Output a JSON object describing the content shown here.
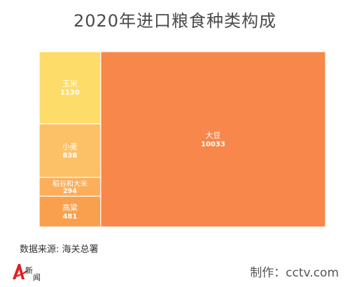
{
  "title": "2020年进口粮食种类构成",
  "source": "数据来源: 海关总署",
  "credit": "制作：cctv.com",
  "logo": {
    "text": "新闻",
    "prefix": "A"
  },
  "colors": {
    "soybean": "#f7874a",
    "corn": "#fddc6a",
    "wheat": "#fcc166",
    "rice": "#fbae5b",
    "sorghum": "#f9a04f"
  },
  "chart_data": {
    "type": "treemap",
    "title": "2020年进口粮食种类构成",
    "items": [
      {
        "name": "大豆",
        "value": 10033
      },
      {
        "name": "玉米",
        "value": 1130
      },
      {
        "name": "小麦",
        "value": 838
      },
      {
        "name": "稻谷和大米",
        "value": 294
      },
      {
        "name": "高粱",
        "value": 481
      }
    ]
  }
}
